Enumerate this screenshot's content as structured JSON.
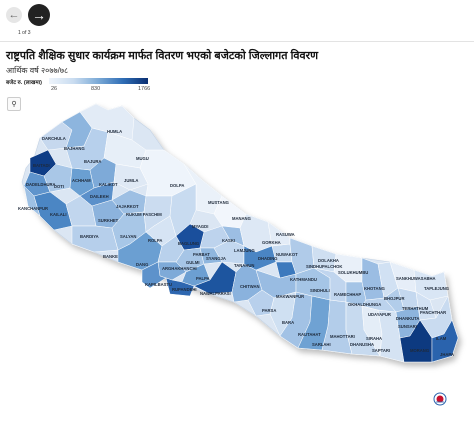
{
  "nav": {
    "page": "1 of 3"
  },
  "header": {
    "title": "राष्ट्रपति शैक्षिक सुधार कार्यक्रम मार्फत वितरण भएको बजेटको जिल्लागत विवरण",
    "subtitle": "आर्थिक वर्ष २०७७/७८"
  },
  "legend": {
    "title": "बजेट रु. (लाखमा)",
    "min": "26",
    "mid": "830",
    "max": "1766"
  },
  "map": {
    "outline_color": "#cfd9e6",
    "low_color": "#eef4fb",
    "high_color": "#0a2f72",
    "districts": [
      {
        "name": "HUMLA"
      },
      {
        "name": "DARCHULA"
      },
      {
        "name": "BAJHANG"
      },
      {
        "name": "BAITADI"
      },
      {
        "name": "DADELDHURA"
      },
      {
        "name": "KANCHANPUR"
      },
      {
        "name": "KAILALI"
      },
      {
        "name": "DOTI"
      },
      {
        "name": "BAJURA"
      },
      {
        "name": "ACHHAM"
      },
      {
        "name": "MUGU"
      },
      {
        "name": "JUMLA"
      },
      {
        "name": "KALIKOT"
      },
      {
        "name": "DAILEKH"
      },
      {
        "name": "JAJARKOT"
      },
      {
        "name": "SURKHET"
      },
      {
        "name": "BARDIYA"
      },
      {
        "name": "BANKE"
      },
      {
        "name": "SALYAN"
      },
      {
        "name": "DOLPA"
      },
      {
        "name": "MUSTANG"
      },
      {
        "name": "MANANG"
      },
      {
        "name": "MYAGDI"
      },
      {
        "name": "ROLPA"
      },
      {
        "name": "RUKUM PASCHIM"
      },
      {
        "name": "DANG"
      },
      {
        "name": "KAPILBASTU"
      },
      {
        "name": "ARGHAKHANCHI"
      },
      {
        "name": "GULMI"
      },
      {
        "name": "PALPA"
      },
      {
        "name": "RUPANDEHI"
      },
      {
        "name": "NAWALPARASI"
      },
      {
        "name": "BAGLUNG"
      },
      {
        "name": "PARBAT"
      },
      {
        "name": "KASKI"
      },
      {
        "name": "LAMJUNG"
      },
      {
        "name": "GORKHA"
      },
      {
        "name": "TANAHUN"
      },
      {
        "name": "SYANGJA"
      },
      {
        "name": "CHITWAN"
      },
      {
        "name": "DHADING"
      },
      {
        "name": "NUWAKOT"
      },
      {
        "name": "RASUWA"
      },
      {
        "name": "SINDHUPALCHOK"
      },
      {
        "name": "KATHMANDU"
      },
      {
        "name": "MAKWANPUR"
      },
      {
        "name": "PARSA"
      },
      {
        "name": "BARA"
      },
      {
        "name": "RAUTAHAT"
      },
      {
        "name": "SARLAHI"
      },
      {
        "name": "MAHOTTARI"
      },
      {
        "name": "DHANUSHA"
      },
      {
        "name": "SIRAHA"
      },
      {
        "name": "SAPTARI"
      },
      {
        "name": "SINDHULI"
      },
      {
        "name": "RAMECHHAP"
      },
      {
        "name": "DOLAKHA"
      },
      {
        "name": "SOLUKHUMBU"
      },
      {
        "name": "OKHALDHUNGA"
      },
      {
        "name": "KHOTANG"
      },
      {
        "name": "UDAYAPUR"
      },
      {
        "name": "BHOJPUR"
      },
      {
        "name": "SANKHUWASABHA"
      },
      {
        "name": "TAPLEJUNG"
      },
      {
        "name": "PANCHTHAR"
      },
      {
        "name": "ILAM"
      },
      {
        "name": "JHAPA"
      },
      {
        "name": "MORANG"
      },
      {
        "name": "SUNSARI"
      },
      {
        "name": "DHANKUTA"
      },
      {
        "name": "TERHATHUM"
      }
    ]
  }
}
